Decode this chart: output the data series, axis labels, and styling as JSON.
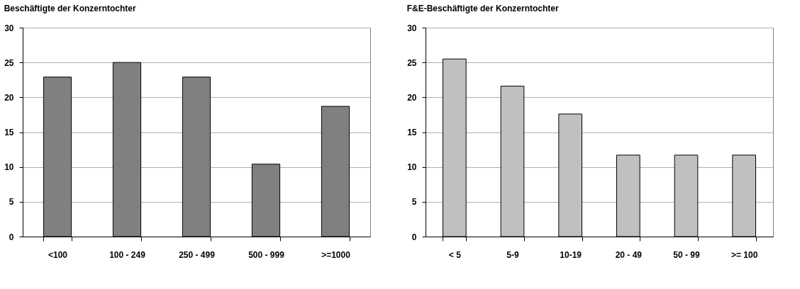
{
  "chart_data": [
    {
      "type": "bar",
      "title": "Beschäftigte der Konzerntochter",
      "categories": [
        "<100",
        "100 - 249",
        "250 - 499",
        "500 - 999",
        ">=1000"
      ],
      "values": [
        22.9,
        25,
        22.9,
        10.4,
        18.7
      ],
      "color": "#808080",
      "ylim": [
        0,
        30
      ],
      "yticks": [
        0,
        5,
        10,
        15,
        20,
        25,
        30
      ],
      "grid": "y"
    },
    {
      "type": "bar",
      "title": "F&E-Beschäftigte der Konzerntochter",
      "categories": [
        "< 5",
        "5-9",
        "10-19",
        "20 - 49",
        "50 - 99",
        ">= 100"
      ],
      "values": [
        25.5,
        21.6,
        17.6,
        11.7,
        11.7,
        11.7
      ],
      "color": "#c0c0c0",
      "ylim": [
        0,
        30
      ],
      "yticks": [
        0,
        5,
        10,
        15,
        20,
        25,
        30
      ],
      "grid": "y"
    }
  ]
}
